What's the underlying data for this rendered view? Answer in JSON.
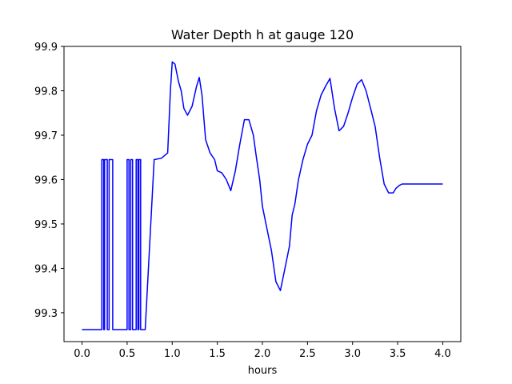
{
  "chart_data": {
    "type": "line",
    "title": "Water Depth h at gauge 120",
    "xlabel": "hours",
    "ylabel": "",
    "xlim": [
      -0.2,
      4.2
    ],
    "ylim": [
      99.235,
      99.9
    ],
    "xticks": [
      0.0,
      0.5,
      1.0,
      1.5,
      2.0,
      2.5,
      3.0,
      3.5,
      4.0
    ],
    "xtick_labels": [
      "0.0",
      "0.5",
      "1.0",
      "1.5",
      "2.0",
      "2.5",
      "3.0",
      "3.5",
      "4.0"
    ],
    "yticks": [
      99.3,
      99.4,
      99.5,
      99.6,
      99.7,
      99.8,
      99.9
    ],
    "ytick_labels": [
      "99.3",
      "99.4",
      "99.5",
      "99.6",
      "99.7",
      "99.8",
      "99.9"
    ],
    "grid": false,
    "series": [
      {
        "color": "#0000ff",
        "x": [
          0.0,
          0.22,
          0.22,
          0.24,
          0.24,
          0.25,
          0.25,
          0.28,
          0.28,
          0.3,
          0.3,
          0.34,
          0.34,
          0.36,
          0.36,
          0.5,
          0.5,
          0.52,
          0.52,
          0.54,
          0.54,
          0.56,
          0.56,
          0.6,
          0.6,
          0.62,
          0.62,
          0.63,
          0.63,
          0.65,
          0.65,
          0.7,
          0.8,
          0.88,
          0.92,
          0.95,
          0.98,
          1.0,
          1.03,
          1.07,
          1.1,
          1.13,
          1.17,
          1.22,
          1.27,
          1.3,
          1.33,
          1.37,
          1.42,
          1.47,
          1.5,
          1.55,
          1.6,
          1.65,
          1.7,
          1.75,
          1.8,
          1.85,
          1.9,
          1.93,
          1.97,
          2.0,
          2.05,
          2.1,
          2.15,
          2.2,
          2.25,
          2.3,
          2.33,
          2.36,
          2.4,
          2.45,
          2.5,
          2.55,
          2.6,
          2.65,
          2.7,
          2.75,
          2.8,
          2.85,
          2.9,
          2.95,
          3.0,
          3.05,
          3.1,
          3.15,
          3.2,
          3.25,
          3.3,
          3.35,
          3.4,
          3.45,
          3.48,
          3.52,
          3.55,
          3.6,
          3.65,
          3.7,
          3.75,
          3.8,
          3.85,
          3.9,
          3.95,
          4.0
        ],
        "y": [
          99.262,
          99.262,
          99.645,
          99.645,
          99.262,
          99.262,
          99.645,
          99.645,
          99.262,
          99.262,
          99.645,
          99.645,
          99.262,
          99.262,
          99.262,
          99.262,
          99.645,
          99.645,
          99.262,
          99.262,
          99.645,
          99.645,
          99.262,
          99.262,
          99.645,
          99.645,
          99.262,
          99.262,
          99.645,
          99.645,
          99.262,
          99.262,
          99.645,
          99.648,
          99.655,
          99.66,
          99.8,
          99.865,
          99.86,
          99.82,
          99.8,
          99.76,
          99.745,
          99.765,
          99.81,
          99.83,
          99.79,
          99.69,
          99.66,
          99.645,
          99.62,
          99.615,
          99.6,
          99.575,
          99.62,
          99.68,
          99.735,
          99.735,
          99.7,
          99.655,
          99.6,
          99.54,
          99.49,
          99.44,
          99.37,
          99.35,
          99.4,
          99.45,
          99.52,
          99.545,
          99.6,
          99.645,
          99.68,
          99.7,
          99.755,
          99.79,
          99.81,
          99.828,
          99.76,
          99.71,
          99.72,
          99.75,
          99.785,
          99.815,
          99.825,
          99.8,
          99.76,
          99.72,
          99.65,
          99.59,
          99.57,
          99.57,
          99.58,
          99.587,
          99.59,
          99.59,
          99.59,
          99.59,
          99.59,
          99.59,
          99.59,
          99.59,
          99.59,
          99.59
        ]
      }
    ]
  }
}
